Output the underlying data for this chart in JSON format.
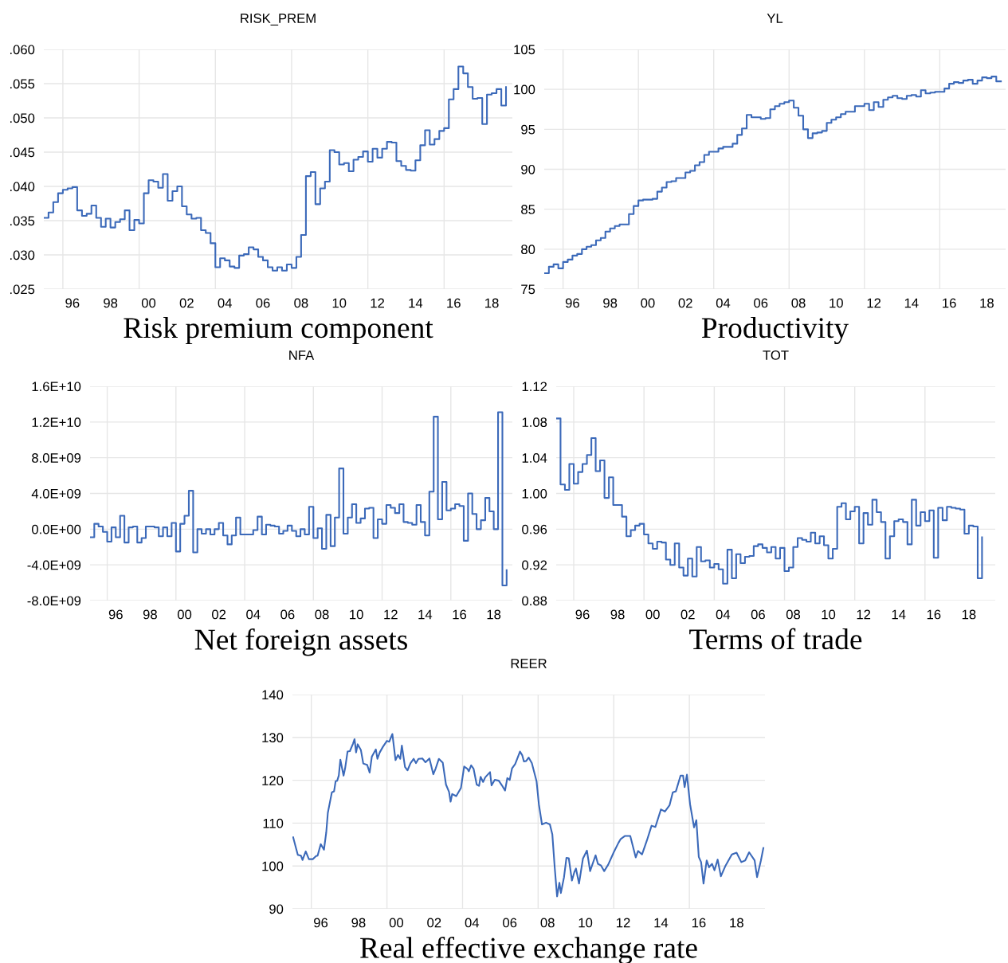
{
  "chart_data": [
    {
      "type": "step",
      "title": "RISK_PREM",
      "xlabel": "Risk premium component",
      "x": [
        "1995-01",
        "1995-04",
        "1995-07",
        "1995-10",
        "1996-01",
        "1996-04",
        "1996-07",
        "1996-10",
        "1997-01",
        "1997-04",
        "1997-07",
        "1997-10",
        "1998-01",
        "1998-04",
        "1998-07",
        "1998-10",
        "1999-01",
        "1999-04",
        "1999-07",
        "1999-10",
        "2000-01",
        "2000-04",
        "2000-07",
        "2000-10",
        "2001-01",
        "2001-04",
        "2001-07",
        "2001-10",
        "2002-01",
        "2002-04",
        "2002-07",
        "2002-10",
        "2003-01",
        "2003-04",
        "2003-07",
        "2003-10",
        "2004-01",
        "2004-04",
        "2004-07",
        "2004-10",
        "2005-01",
        "2005-04",
        "2005-07",
        "2005-10",
        "2006-01",
        "2006-04",
        "2006-07",
        "2006-10",
        "2007-01",
        "2007-04",
        "2007-07",
        "2007-10",
        "2008-01",
        "2008-04",
        "2008-07",
        "2008-10",
        "2009-01",
        "2009-04",
        "2009-07",
        "2009-10",
        "2010-01",
        "2010-04",
        "2010-07",
        "2010-10",
        "2011-01",
        "2011-04",
        "2011-07",
        "2011-10",
        "2012-01",
        "2012-04",
        "2012-07",
        "2012-10",
        "2013-01",
        "2013-04",
        "2013-07",
        "2013-10",
        "2014-01",
        "2014-04",
        "2014-07",
        "2014-10",
        "2015-01",
        "2015-04",
        "2015-07",
        "2015-10",
        "2016-01",
        "2016-04",
        "2016-07",
        "2016-10",
        "2017-01",
        "2017-04",
        "2017-07",
        "2017-10",
        "2018-01",
        "2018-04",
        "2018-07",
        "2018-10",
        "2019-01",
        "2019-04"
      ],
      "series": [
        {
          "color": "#3b69b9",
          "values": [
            0.0354,
            0.0362,
            0.0377,
            0.039,
            0.0395,
            0.0397,
            0.0399,
            0.0365,
            0.0357,
            0.036,
            0.0372,
            0.0354,
            0.0341,
            0.0353,
            0.034,
            0.0348,
            0.0352,
            0.0365,
            0.0336,
            0.0351,
            0.0346,
            0.039,
            0.0409,
            0.0407,
            0.0398,
            0.0418,
            0.0379,
            0.0393,
            0.04,
            0.0371,
            0.0359,
            0.0353,
            0.0354,
            0.0336,
            0.0332,
            0.0317,
            0.0282,
            0.0295,
            0.0292,
            0.0283,
            0.0281,
            0.0299,
            0.0301,
            0.0311,
            0.0308,
            0.0297,
            0.0292,
            0.0282,
            0.0277,
            0.0282,
            0.0277,
            0.0286,
            0.0281,
            0.0297,
            0.0329,
            0.0415,
            0.0421,
            0.0374,
            0.0397,
            0.0407,
            0.0453,
            0.045,
            0.0432,
            0.0434,
            0.0422,
            0.0439,
            0.0443,
            0.0451,
            0.0436,
            0.0455,
            0.0442,
            0.0455,
            0.0465,
            0.0464,
            0.0437,
            0.043,
            0.0424,
            0.0423,
            0.0438,
            0.046,
            0.0482,
            0.0461,
            0.0469,
            0.0481,
            0.0485,
            0.0527,
            0.0542,
            0.0575,
            0.0565,
            0.0545,
            0.0528,
            0.0529,
            0.0491,
            0.0534,
            0.0536,
            0.0542,
            0.0518,
            0.0545
          ]
        }
      ],
      "xlim": [
        "1995-01",
        "2019-08"
      ],
      "xticks": [
        {
          "value": "1996-01",
          "label": null
        },
        {
          "value": "2000-01",
          "label": null
        },
        {
          "value": "2004-01",
          "label": null
        },
        {
          "value": "2008-01",
          "label": null
        },
        {
          "value": "2012-01",
          "label": null
        },
        {
          "value": "2016-01",
          "label": null
        },
        {
          "value": "1996-07",
          "label": "96"
        },
        {
          "value": "1998-07",
          "label": "98"
        },
        {
          "value": "2000-07",
          "label": "00"
        },
        {
          "value": "2002-07",
          "label": "02"
        },
        {
          "value": "2004-07",
          "label": "04"
        },
        {
          "value": "2006-07",
          "label": "06"
        },
        {
          "value": "2008-07",
          "label": "08"
        },
        {
          "value": "2010-07",
          "label": "10"
        },
        {
          "value": "2012-07",
          "label": "12"
        },
        {
          "value": "2014-07",
          "label": "14"
        },
        {
          "value": "2016-07",
          "label": "16"
        },
        {
          "value": "2018-07",
          "label": "18"
        }
      ],
      "ylim": [
        0.025,
        0.06
      ],
      "yticks": [
        {
          "value": 0.025,
          "label": ".025"
        },
        {
          "value": 0.03,
          "label": ".030"
        },
        {
          "value": 0.035,
          "label": ".035"
        },
        {
          "value": 0.04,
          "label": ".040"
        },
        {
          "value": 0.045,
          "label": ".045"
        },
        {
          "value": 0.05,
          "label": ".050"
        },
        {
          "value": 0.055,
          "label": ".055"
        },
        {
          "value": 0.06,
          "label": ".060"
        }
      ],
      "grid": true
    },
    {
      "type": "step",
      "title": "YL",
      "xlabel": "Productivity",
      "x": [
        "1995-01",
        "1995-04",
        "1995-07",
        "1995-10",
        "1996-01",
        "1996-04",
        "1996-07",
        "1996-10",
        "1997-01",
        "1997-04",
        "1997-07",
        "1997-10",
        "1998-01",
        "1998-04",
        "1998-07",
        "1998-10",
        "1999-01",
        "1999-04",
        "1999-07",
        "1999-10",
        "2000-01",
        "2000-04",
        "2000-07",
        "2000-10",
        "2001-01",
        "2001-04",
        "2001-07",
        "2001-10",
        "2002-01",
        "2002-04",
        "2002-07",
        "2002-10",
        "2003-01",
        "2003-04",
        "2003-07",
        "2003-10",
        "2004-01",
        "2004-04",
        "2004-07",
        "2004-10",
        "2005-01",
        "2005-04",
        "2005-07",
        "2005-10",
        "2006-01",
        "2006-04",
        "2006-07",
        "2006-10",
        "2007-01",
        "2007-04",
        "2007-07",
        "2007-10",
        "2008-01",
        "2008-04",
        "2008-07",
        "2008-10",
        "2009-01",
        "2009-04",
        "2009-07",
        "2009-10",
        "2010-01",
        "2010-04",
        "2010-07",
        "2010-10",
        "2011-01",
        "2011-04",
        "2011-07",
        "2011-10",
        "2012-01",
        "2012-04",
        "2012-07",
        "2012-10",
        "2013-01",
        "2013-04",
        "2013-07",
        "2013-10",
        "2014-01",
        "2014-04",
        "2014-07",
        "2014-10",
        "2015-01",
        "2015-04",
        "2015-07",
        "2015-10",
        "2016-01",
        "2016-04",
        "2016-07",
        "2016-10",
        "2017-01",
        "2017-04",
        "2017-07",
        "2017-10",
        "2018-01",
        "2018-04",
        "2018-07",
        "2018-10",
        "2019-01",
        "2019-04"
      ],
      "series": [
        {
          "color": "#3b69b9",
          "values": [
            77.0,
            77.8,
            78.1,
            77.6,
            78.4,
            78.7,
            79.2,
            79.4,
            80.0,
            80.3,
            80.5,
            81.1,
            81.4,
            82.2,
            82.6,
            82.9,
            83.1,
            83.1,
            84.4,
            85.4,
            86.1,
            86.2,
            86.2,
            86.3,
            87.2,
            87.7,
            88.4,
            88.5,
            88.9,
            88.9,
            89.6,
            89.8,
            90.5,
            90.9,
            91.8,
            92.2,
            92.2,
            92.6,
            92.8,
            92.8,
            93.2,
            94.3,
            95.1,
            96.8,
            96.5,
            96.5,
            96.3,
            96.4,
            97.5,
            97.9,
            98.2,
            98.4,
            98.6,
            97.7,
            96.7,
            95.0,
            93.9,
            94.5,
            94.6,
            94.8,
            95.8,
            96.2,
            96.5,
            96.9,
            97.2,
            97.2,
            97.9,
            97.9,
            98.2,
            97.4,
            98.4,
            97.8,
            98.7,
            99.0,
            99.2,
            98.9,
            98.8,
            99.2,
            99.3,
            99.1,
            99.9,
            99.5,
            99.6,
            99.7,
            99.7,
            100.1,
            100.7,
            100.9,
            100.8,
            101.1,
            101.2,
            100.7,
            101.1,
            101.5,
            101.4,
            101.6,
            101.0,
            101.0
          ]
        }
      ],
      "xlim": [
        "1995-01",
        "2019-07"
      ],
      "xticks": [
        {
          "value": "1996-01",
          "label": null
        },
        {
          "value": "2000-01",
          "label": null
        },
        {
          "value": "2004-01",
          "label": null
        },
        {
          "value": "2008-01",
          "label": null
        },
        {
          "value": "2012-01",
          "label": null
        },
        {
          "value": "2016-01",
          "label": null
        },
        {
          "value": "1996-07",
          "label": "96"
        },
        {
          "value": "1998-07",
          "label": "98"
        },
        {
          "value": "2000-07",
          "label": "00"
        },
        {
          "value": "2002-07",
          "label": "02"
        },
        {
          "value": "2004-07",
          "label": "04"
        },
        {
          "value": "2006-07",
          "label": "06"
        },
        {
          "value": "2008-07",
          "label": "08"
        },
        {
          "value": "2010-07",
          "label": "10"
        },
        {
          "value": "2012-07",
          "label": "12"
        },
        {
          "value": "2014-07",
          "label": "14"
        },
        {
          "value": "2016-07",
          "label": "16"
        },
        {
          "value": "2018-07",
          "label": "18"
        }
      ],
      "ylim": [
        75,
        105
      ],
      "yticks": [
        75,
        80,
        85,
        90,
        95,
        100,
        105
      ],
      "grid": true
    },
    {
      "type": "step",
      "title": "NFA",
      "xlabel": "Net foreign assets",
      "x": [
        "1995-01",
        "1995-04",
        "1995-07",
        "1995-10",
        "1996-01",
        "1996-04",
        "1996-07",
        "1996-10",
        "1997-01",
        "1997-04",
        "1997-07",
        "1997-10",
        "1998-01",
        "1998-04",
        "1998-07",
        "1998-10",
        "1999-01",
        "1999-04",
        "1999-07",
        "1999-10",
        "2000-01",
        "2000-04",
        "2000-07",
        "2000-10",
        "2001-01",
        "2001-04",
        "2001-07",
        "2001-10",
        "2002-01",
        "2002-04",
        "2002-07",
        "2002-10",
        "2003-01",
        "2003-04",
        "2003-07",
        "2003-10",
        "2004-01",
        "2004-04",
        "2004-07",
        "2004-10",
        "2005-01",
        "2005-04",
        "2005-07",
        "2005-10",
        "2006-01",
        "2006-04",
        "2006-07",
        "2006-10",
        "2007-01",
        "2007-04",
        "2007-07",
        "2007-10",
        "2008-01",
        "2008-04",
        "2008-07",
        "2008-10",
        "2009-01",
        "2009-04",
        "2009-07",
        "2009-10",
        "2010-01",
        "2010-04",
        "2010-07",
        "2010-10",
        "2011-01",
        "2011-04",
        "2011-07",
        "2011-10",
        "2012-01",
        "2012-04",
        "2012-07",
        "2012-10",
        "2013-01",
        "2013-04",
        "2013-07",
        "2013-10",
        "2014-01",
        "2014-04",
        "2014-07",
        "2014-10",
        "2015-01",
        "2015-04",
        "2015-07",
        "2015-10",
        "2016-01",
        "2016-04",
        "2016-07",
        "2016-10",
        "2017-01",
        "2017-04",
        "2017-07",
        "2017-10",
        "2018-01",
        "2018-04",
        "2018-07",
        "2018-10",
        "2019-01",
        "2019-04"
      ],
      "series": [
        {
          "color": "#3b69b9",
          "values": [
            -900000000.0,
            600000000.0,
            300000000.0,
            -300000000.0,
            -1400000000.0,
            200000000.0,
            -900000000.0,
            1500000000.0,
            -1500000000.0,
            200000000.0,
            300000000.0,
            -1500000000.0,
            -1000000000.0,
            300000000.0,
            300000000.0,
            200000000.0,
            -800000000.0,
            200000000.0,
            -800000000.0,
            700000000.0,
            -2500000000.0,
            600000000.0,
            1500000000.0,
            4300000000.0,
            -2600000000.0,
            0.0,
            -500000000.0,
            0.0,
            -600000000.0,
            0.0,
            700000000.0,
            -700000000.0,
            -1700000000.0,
            -700000000.0,
            1300000000.0,
            -600000000.0,
            -600000000.0,
            -600000000.0,
            -100000000.0,
            1400000000.0,
            -600000000.0,
            500000000.0,
            400000000.0,
            300000000.0,
            -500000000.0,
            -200000000.0,
            400000000.0,
            -200000000.0,
            -800000000.0,
            0.0,
            -600000000.0,
            2500000000.0,
            -1000000000.0,
            100000000.0,
            -2200000000.0,
            1600000000.0,
            -1900000000.0,
            1300000000.0,
            6800000000.0,
            -500000000.0,
            1300000000.0,
            2800000000.0,
            700000000.0,
            1200000000.0,
            2300000000.0,
            2400000000.0,
            -1000000000.0,
            1100000000.0,
            600000000.0,
            2700000000.0,
            2400000000.0,
            1800000000.0,
            2800000000.0,
            800000000.0,
            700000000.0,
            500000000.0,
            2700000000.0,
            800000000.0,
            -700000000.0,
            4200000000.0,
            12600000000.0,
            1100000000.0,
            5300000000.0,
            2100000000.0,
            2300000000.0,
            2800000000.0,
            2600000000.0,
            -1300000000.0,
            4000000000.0,
            1700000000.0,
            0.0,
            1000000000.0,
            3500000000.0,
            2000000000.0,
            0.0,
            13100000000.0,
            -6300000000.0,
            -4600000000.0
          ]
        }
      ],
      "xlim": [
        "1995-01",
        "2019-08"
      ],
      "xticks": [
        {
          "value": "1996-01",
          "label": null
        },
        {
          "value": "2000-01",
          "label": null
        },
        {
          "value": "2004-01",
          "label": null
        },
        {
          "value": "2008-01",
          "label": null
        },
        {
          "value": "2012-01",
          "label": null
        },
        {
          "value": "2016-01",
          "label": null
        },
        {
          "value": "1996-07",
          "label": "96"
        },
        {
          "value": "1998-07",
          "label": "98"
        },
        {
          "value": "2000-07",
          "label": "00"
        },
        {
          "value": "2002-07",
          "label": "02"
        },
        {
          "value": "2004-07",
          "label": "04"
        },
        {
          "value": "2006-07",
          "label": "06"
        },
        {
          "value": "2008-07",
          "label": "08"
        },
        {
          "value": "2010-07",
          "label": "10"
        },
        {
          "value": "2012-07",
          "label": "12"
        },
        {
          "value": "2014-07",
          "label": "14"
        },
        {
          "value": "2016-07",
          "label": "16"
        },
        {
          "value": "2018-07",
          "label": "18"
        }
      ],
      "ylim": [
        -8000000000.0,
        16000000000.0
      ],
      "yticks": [
        {
          "value": -8000000000.0,
          "label": "-8.0E+09"
        },
        {
          "value": -4000000000.0,
          "label": "-4.0E+09"
        },
        {
          "value": 0,
          "label": "0.0E+00"
        },
        {
          "value": 4000000000.0,
          "label": "4.0E+09"
        },
        {
          "value": 8000000000.0,
          "label": "8.0E+09"
        },
        {
          "value": 12000000000.0,
          "label": "1.2E+10"
        },
        {
          "value": 16000000000.0,
          "label": "1.6E+10"
        }
      ],
      "grid": true
    },
    {
      "type": "step",
      "title": "TOT",
      "xlabel": "Terms of trade",
      "x": [
        "1995-01",
        "1995-04",
        "1995-07",
        "1995-10",
        "1996-01",
        "1996-04",
        "1996-07",
        "1996-10",
        "1997-01",
        "1997-04",
        "1997-07",
        "1997-10",
        "1998-01",
        "1998-04",
        "1998-07",
        "1998-10",
        "1999-01",
        "1999-04",
        "1999-07",
        "1999-10",
        "2000-01",
        "2000-04",
        "2000-07",
        "2000-10",
        "2001-01",
        "2001-04",
        "2001-07",
        "2001-10",
        "2002-01",
        "2002-04",
        "2002-07",
        "2002-10",
        "2003-01",
        "2003-04",
        "2003-07",
        "2003-10",
        "2004-01",
        "2004-04",
        "2004-07",
        "2004-10",
        "2005-01",
        "2005-04",
        "2005-07",
        "2005-10",
        "2006-01",
        "2006-04",
        "2006-07",
        "2006-10",
        "2007-01",
        "2007-04",
        "2007-07",
        "2007-10",
        "2008-01",
        "2008-04",
        "2008-07",
        "2008-10",
        "2009-01",
        "2009-04",
        "2009-07",
        "2009-10",
        "2010-01",
        "2010-04",
        "2010-07",
        "2010-10",
        "2011-01",
        "2011-04",
        "2011-07",
        "2011-10",
        "2012-01",
        "2012-04",
        "2012-07",
        "2012-10",
        "2013-01",
        "2013-04",
        "2013-07",
        "2013-10",
        "2014-01",
        "2014-04",
        "2014-07",
        "2014-10",
        "2015-01",
        "2015-04",
        "2015-07",
        "2015-10",
        "2016-01",
        "2016-04",
        "2016-07",
        "2016-10",
        "2017-01",
        "2017-04",
        "2017-07",
        "2017-10",
        "2018-01",
        "2018-04",
        "2018-07",
        "2018-10",
        "2019-01",
        "2019-04"
      ],
      "series": [
        {
          "color": "#3b69b9",
          "values": [
            1.084,
            1.01,
            1.004,
            1.033,
            1.011,
            1.024,
            1.033,
            1.043,
            1.062,
            1.025,
            1.037,
            0.995,
            1.018,
            0.987,
            0.987,
            0.974,
            0.952,
            0.959,
            0.964,
            0.966,
            0.954,
            0.944,
            0.938,
            0.946,
            0.945,
            0.926,
            0.92,
            0.944,
            0.917,
            0.908,
            0.927,
            0.907,
            0.94,
            0.924,
            0.925,
            0.917,
            0.921,
            0.915,
            0.899,
            0.937,
            0.905,
            0.932,
            0.922,
            0.929,
            0.93,
            0.941,
            0.943,
            0.939,
            0.934,
            0.94,
            0.927,
            0.939,
            0.913,
            0.917,
            0.94,
            0.95,
            0.948,
            0.946,
            0.956,
            0.944,
            0.952,
            0.942,
            0.927,
            0.938,
            0.985,
            0.989,
            0.971,
            0.98,
            0.985,
            0.944,
            0.978,
            0.965,
            0.993,
            0.979,
            0.968,
            0.927,
            0.952,
            0.969,
            0.971,
            0.968,
            0.943,
            0.993,
            0.964,
            0.979,
            0.969,
            0.981,
            0.928,
            0.984,
            0.97,
            0.985,
            0.984,
            0.983,
            0.982,
            0.955,
            0.964,
            0.963,
            0.905,
            0.951
          ]
        }
      ],
      "xlim": [
        "1995-01",
        "2020-01"
      ],
      "xticks": [
        {
          "value": "1996-01",
          "label": null
        },
        {
          "value": "2000-01",
          "label": null
        },
        {
          "value": "2004-01",
          "label": null
        },
        {
          "value": "2008-01",
          "label": null
        },
        {
          "value": "2012-01",
          "label": null
        },
        {
          "value": "2016-01",
          "label": null
        },
        {
          "value": "1996-07",
          "label": "96"
        },
        {
          "value": "1998-07",
          "label": "98"
        },
        {
          "value": "2000-07",
          "label": "00"
        },
        {
          "value": "2002-07",
          "label": "02"
        },
        {
          "value": "2004-07",
          "label": "04"
        },
        {
          "value": "2006-07",
          "label": "06"
        },
        {
          "value": "2008-07",
          "label": "08"
        },
        {
          "value": "2010-07",
          "label": "10"
        },
        {
          "value": "2012-07",
          "label": "12"
        },
        {
          "value": "2014-07",
          "label": "14"
        },
        {
          "value": "2016-07",
          "label": "16"
        },
        {
          "value": "2018-07",
          "label": "18"
        }
      ],
      "ylim": [
        0.88,
        1.12
      ],
      "yticks": [
        {
          "value": 0.88,
          "label": "0.88"
        },
        {
          "value": 0.92,
          "label": "0.92"
        },
        {
          "value": 0.96,
          "label": "0.96"
        },
        {
          "value": 1.0,
          "label": "1.00"
        },
        {
          "value": 1.04,
          "label": "1.04"
        },
        {
          "value": 1.08,
          "label": "1.08"
        },
        {
          "value": 1.12,
          "label": "1.12"
        }
      ],
      "grid": true
    },
    {
      "type": "line",
      "title": "REER",
      "xlabel": "Real effective exchange rate",
      "series": [
        {
          "color": "#3b69b9",
          "x": [
            "1995-01-15",
            "1995-03-15",
            "1995-04-15",
            "1995-06-15",
            "1995-07-15",
            "1995-09-15",
            "1995-11-15",
            "1996-02-01",
            "1996-04-01",
            "1996-05-01",
            "1996-07-01",
            "1996-09-01",
            "1996-10-15",
            "1996-11-15",
            "1997-02-01",
            "1997-03-15",
            "1997-04-15",
            "1997-05-15",
            "1997-06-15",
            "1997-07-15",
            "1997-09-15",
            "1997-10-15",
            "1997-12-01",
            "1998-01-15",
            "1998-03-15",
            "1998-04-15",
            "1998-05-15",
            "1998-06-15",
            "1998-08-15",
            "1998-10-01",
            "1998-12-15",
            "1999-02-01",
            "1999-03-15",
            "1999-06-01",
            "1999-07-01",
            "1999-08-15",
            "1999-10-15",
            "2000-01-01",
            "2000-02-15",
            "2000-04-15",
            "2000-06-15",
            "2000-08-01",
            "2000-09-15",
            "2000-10-15",
            "2000-12-15",
            "2001-02-01",
            "2001-04-01",
            "2001-06-01",
            "2001-07-15",
            "2001-09-01",
            "2001-11-15",
            "2002-01-15",
            "2002-04-01",
            "2002-06-15",
            "2002-08-01",
            "2002-10-01",
            "2002-12-15",
            "2003-02-15",
            "2003-04-15",
            "2003-05-15",
            "2003-06-15",
            "2003-09-01",
            "2003-12-01",
            "2004-02-01",
            "2004-04-01",
            "2004-05-01",
            "2004-06-15",
            "2004-08-01",
            "2004-10-01",
            "2004-11-15",
            "2004-12-15",
            "2005-02-01",
            "2005-03-15",
            "2005-06-15",
            "2005-07-15",
            "2005-09-15",
            "2005-12-01",
            "2006-02-01",
            "2006-04-01",
            "2006-05-15",
            "2006-07-01",
            "2006-08-15",
            "2006-10-15",
            "2007-01-15",
            "2007-03-01",
            "2007-04-01",
            "2007-05-15",
            "2007-07-01",
            "2007-09-01",
            "2007-12-01",
            "2008-01-15",
            "2008-03-15",
            "2008-06-01",
            "2008-08-15",
            "2008-10-01",
            "2008-11-15",
            "2009-01-01",
            "2009-02-15",
            "2009-03-15",
            "2009-05-15",
            "2009-07-01",
            "2009-08-15",
            "2009-10-15",
            "2009-12-01",
            "2010-01-01",
            "2010-03-01",
            "2010-05-15",
            "2010-08-01",
            "2010-10-01",
            "2011-01-15",
            "2011-03-01",
            "2011-05-01",
            "2011-07-01",
            "2011-09-15",
            "2012-01-01",
            "2012-04-01",
            "2012-05-15",
            "2012-08-01",
            "2012-11-15",
            "2013-03-01",
            "2013-04-15",
            "2013-07-01",
            "2013-10-01",
            "2014-01-01",
            "2014-03-15",
            "2014-07-01",
            "2014-09-15",
            "2014-12-15",
            "2015-02-15",
            "2015-04-15",
            "2015-07-15",
            "2015-09-01",
            "2015-10-01",
            "2015-11-15",
            "2016-01-15",
            "2016-04-01",
            "2016-05-15",
            "2016-07-01",
            "2016-08-15",
            "2016-10-01",
            "2016-12-01",
            "2017-01-15",
            "2017-03-15",
            "2017-05-01",
            "2017-07-01",
            "2017-09-01",
            "2017-12-01",
            "2018-04-01",
            "2018-07-01",
            "2018-10-01",
            "2018-12-15",
            "2019-03-01",
            "2019-06-15",
            "2019-08-01",
            "2019-10-15",
            "2019-12-01"
          ],
          "values": [
            106.7,
            104.0,
            102.6,
            102.4,
            101.4,
            103.4,
            101.6,
            101.6,
            102.3,
            102.4,
            105.1,
            103.8,
            107.8,
            112.4,
            117.2,
            117.4,
            119.8,
            119.9,
            121.1,
            124.8,
            121.1,
            122.8,
            126.7,
            126.8,
            128.5,
            129.6,
            126.5,
            128.4,
            127.1,
            123.9,
            123.6,
            121.8,
            125.5,
            127.2,
            125.0,
            126.5,
            127.8,
            129.2,
            129.0,
            130.8,
            124.7,
            125.9,
            125.0,
            128.1,
            123.1,
            122.3,
            124.0,
            125.0,
            124.0,
            125.0,
            125.1,
            124.2,
            125.1,
            121.4,
            122.8,
            125.0,
            124.1,
            119.0,
            117.3,
            115.0,
            116.8,
            116.3,
            118.2,
            123.2,
            122.7,
            122.1,
            123.5,
            122.7,
            119.0,
            118.7,
            120.8,
            119.6,
            120.7,
            121.9,
            118.8,
            120.1,
            119.9,
            118.8,
            117.6,
            120.5,
            120.1,
            122.8,
            123.8,
            126.7,
            125.8,
            124.4,
            124.5,
            125.3,
            124.0,
            119.8,
            114.4,
            109.7,
            110.1,
            109.7,
            107.4,
            99.8,
            92.9,
            96.1,
            93.7,
            97.4,
            101.9,
            101.8,
            96.6,
            98.6,
            99.4,
            95.9,
            101.7,
            103.6,
            98.8,
            102.5,
            100.5,
            100.1,
            98.8,
            100.3,
            103.2,
            105.4,
            106.3,
            107.0,
            107.0,
            102.0,
            103.5,
            102.7,
            105.9,
            109.4,
            109.1,
            113.2,
            112.7,
            114.2,
            117.2,
            117.4,
            121.1,
            121.1,
            118.4,
            121.3,
            114.4,
            109.0,
            110.7,
            102.1,
            100.9,
            95.9,
            101.3,
            99.7,
            100.5,
            99.0,
            101.5,
            97.6,
            100.1,
            102.7,
            103.1,
            100.9,
            101.3,
            103.2,
            101.3,
            97.4,
            101.3,
            104.2
          ]
        }
      ],
      "xlim": [
        "1995-01",
        "2020-01"
      ],
      "xticks": [
        {
          "value": "1996-01",
          "label": null
        },
        {
          "value": "2000-01",
          "label": null
        },
        {
          "value": "2004-01",
          "label": null
        },
        {
          "value": "2008-01",
          "label": null
        },
        {
          "value": "2012-01",
          "label": null
        },
        {
          "value": "2016-01",
          "label": null
        },
        {
          "value": "1996-07",
          "label": "96"
        },
        {
          "value": "1998-07",
          "label": "98"
        },
        {
          "value": "2000-07",
          "label": "00"
        },
        {
          "value": "2002-07",
          "label": "02"
        },
        {
          "value": "2004-07",
          "label": "04"
        },
        {
          "value": "2006-07",
          "label": "06"
        },
        {
          "value": "2008-07",
          "label": "08"
        },
        {
          "value": "2010-07",
          "label": "10"
        },
        {
          "value": "2012-07",
          "label": "12"
        },
        {
          "value": "2014-07",
          "label": "14"
        },
        {
          "value": "2016-07",
          "label": "16"
        },
        {
          "value": "2018-07",
          "label": "18"
        }
      ],
      "ylim": [
        90,
        140
      ],
      "yticks": [
        90,
        100,
        110,
        120,
        130,
        140
      ],
      "grid": true
    }
  ]
}
